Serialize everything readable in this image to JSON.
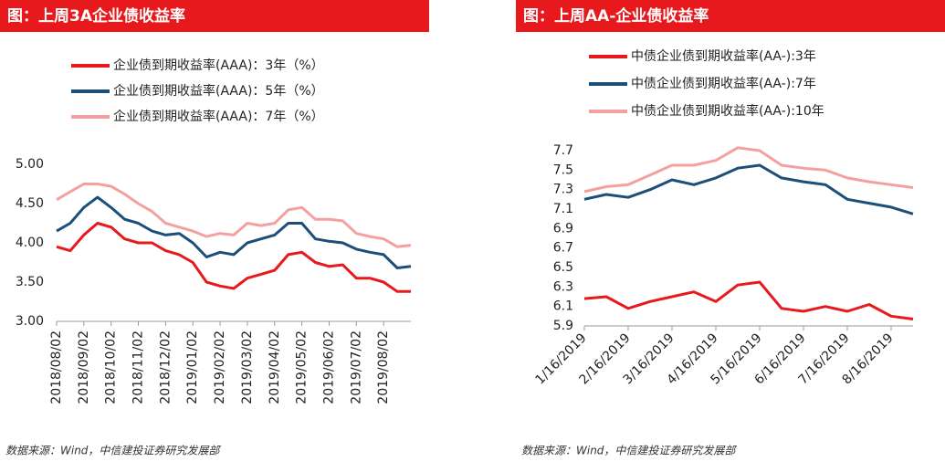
{
  "chart_data": [
    {
      "type": "line",
      "title": "图：上周3A企业债收益率",
      "source": "数据来源：Wind，中信建投证券研究发展部",
      "x": [
        "2018/08/02",
        "2018/08/16",
        "2018/09/02",
        "2018/09/16",
        "2018/10/02",
        "2018/10/16",
        "2018/11/02",
        "2018/11/16",
        "2018/12/02",
        "2018/12/16",
        "2019/01/02",
        "2019/01/16",
        "2019/02/02",
        "2019/02/16",
        "2019/03/02",
        "2019/03/16",
        "2019/04/02",
        "2019/04/16",
        "2019/05/02",
        "2019/05/16",
        "2019/06/02",
        "2019/06/16",
        "2019/07/02",
        "2019/07/16",
        "2019/08/02",
        "2019/08/16",
        "2019/08/30"
      ],
      "xticks": [
        "2018/08/02",
        "2018/09/02",
        "2018/10/02",
        "2018/11/02",
        "2018/12/02",
        "2019/01/02",
        "2019/02/02",
        "2019/03/02",
        "2019/04/02",
        "2019/05/02",
        "2019/06/02",
        "2019/07/02",
        "2019/08/02"
      ],
      "ylim": [
        3,
        5
      ],
      "yticks": [
        {
          "value": 3,
          "label": "3.00"
        },
        {
          "value": 3.5,
          "label": "3.50"
        },
        {
          "value": 4,
          "label": "4.00"
        },
        {
          "value": 4.5,
          "label": "4.50"
        },
        {
          "value": 5,
          "label": "5.00"
        }
      ],
      "series": [
        {
          "name": "企业债到期收益率(AAA)：3年（%）",
          "color": "#e8191c",
          "values": [
            3.95,
            3.9,
            4.1,
            4.25,
            4.2,
            4.05,
            4.0,
            4.0,
            3.9,
            3.85,
            3.75,
            3.5,
            3.45,
            3.42,
            3.55,
            3.6,
            3.65,
            3.85,
            3.88,
            3.75,
            3.7,
            3.72,
            3.55,
            3.55,
            3.5,
            3.38,
            3.38
          ]
        },
        {
          "name": "企业债到期收益率(AAA)：5年（%）",
          "color": "#1b4f7a",
          "values": [
            4.15,
            4.25,
            4.45,
            4.58,
            4.45,
            4.3,
            4.25,
            4.15,
            4.1,
            4.12,
            4.0,
            3.82,
            3.88,
            3.85,
            4.0,
            4.05,
            4.1,
            4.25,
            4.25,
            4.05,
            4.02,
            4.0,
            3.92,
            3.88,
            3.85,
            3.68,
            3.7
          ]
        },
        {
          "name": "企业债到期收益率(AAA)：7年（%）",
          "color": "#f4a0a0",
          "values": [
            4.55,
            4.65,
            4.75,
            4.75,
            4.72,
            4.62,
            4.5,
            4.4,
            4.25,
            4.2,
            4.15,
            4.08,
            4.12,
            4.1,
            4.25,
            4.22,
            4.25,
            4.42,
            4.45,
            4.3,
            4.3,
            4.28,
            4.12,
            4.08,
            4.05,
            3.95,
            3.97
          ]
        }
      ]
    },
    {
      "type": "line",
      "title": "图：上周AA-企业债收益率",
      "source": "数据来源：Wind，中信建投证券研究发展部",
      "x": [
        "1/16/2019",
        "2/1/2019",
        "2/16/2019",
        "3/1/2019",
        "3/16/2019",
        "4/1/2019",
        "4/16/2019",
        "5/1/2019",
        "5/16/2019",
        "6/1/2019",
        "6/16/2019",
        "7/1/2019",
        "7/16/2019",
        "8/1/2019",
        "8/16/2019",
        "8/30/2019"
      ],
      "xticks": [
        "1/16/2019",
        "2/16/2019",
        "3/16/2019",
        "4/16/2019",
        "5/16/2019",
        "6/16/2019",
        "7/16/2019",
        "8/16/2019"
      ],
      "ylim": [
        5.9,
        7.7
      ],
      "yticks": [
        5.9,
        6.1,
        6.3,
        6.5,
        6.7,
        6.9,
        7.1,
        7.3,
        7.5,
        7.7
      ],
      "series": [
        {
          "name": "中债企业债到期收益率(AA-):3年",
          "color": "#e8191c",
          "values": [
            6.18,
            6.2,
            6.08,
            6.15,
            6.2,
            6.25,
            6.15,
            6.32,
            6.35,
            6.08,
            6.05,
            6.1,
            6.05,
            6.12,
            6.0,
            5.97
          ]
        },
        {
          "name": "中债企业债到期收益率(AA-):7年",
          "color": "#1b4f7a",
          "values": [
            7.2,
            7.25,
            7.22,
            7.3,
            7.4,
            7.35,
            7.42,
            7.52,
            7.55,
            7.42,
            7.38,
            7.35,
            7.2,
            7.16,
            7.12,
            7.05
          ]
        },
        {
          "name": "中债企业债到期收益率(AA-):10年",
          "color": "#f4a0a0",
          "values": [
            7.28,
            7.33,
            7.35,
            7.45,
            7.55,
            7.55,
            7.6,
            7.73,
            7.7,
            7.55,
            7.52,
            7.5,
            7.42,
            7.38,
            7.35,
            7.32
          ]
        }
      ]
    }
  ]
}
